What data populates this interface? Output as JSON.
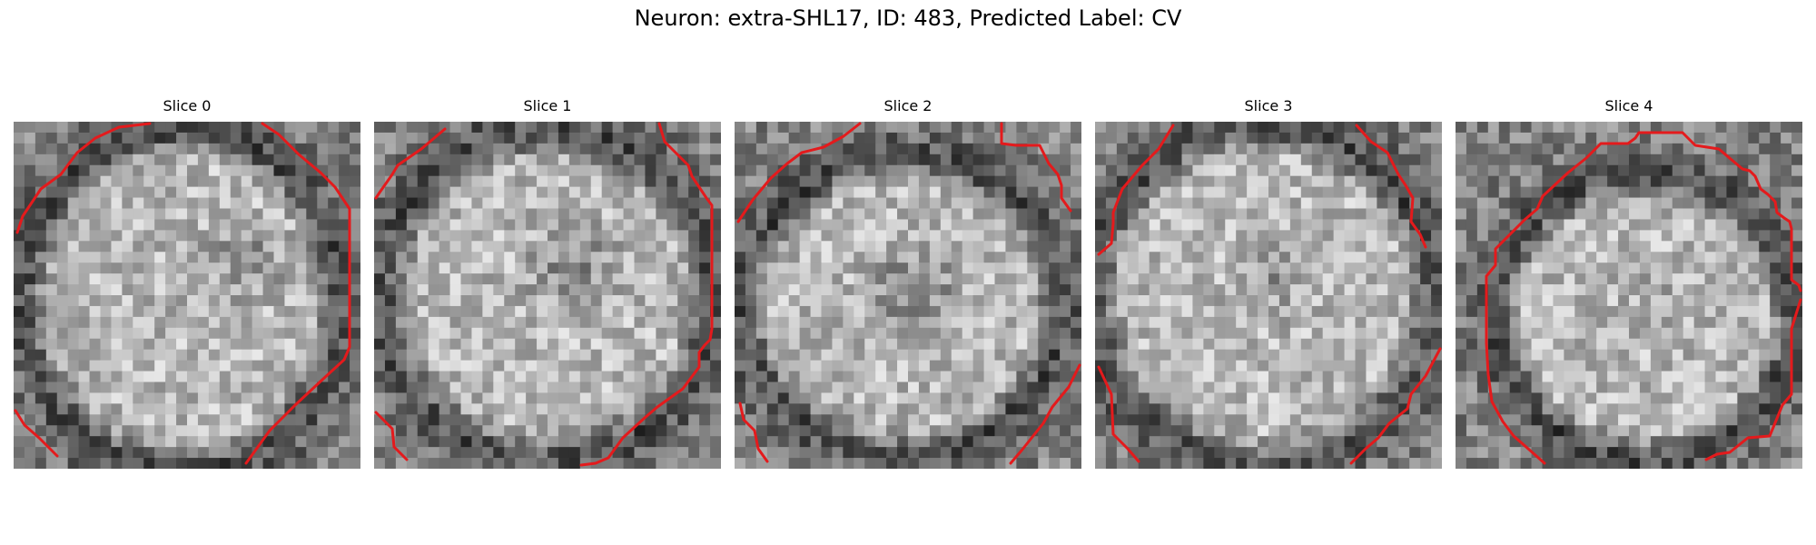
{
  "figure": {
    "title": "Neuron: extra-SHL17, ID: 483, Predicted Label: CV"
  },
  "contour_color": "#e41a1c",
  "panels": [
    {
      "title": "Slice 0"
    },
    {
      "title": "Slice 1"
    },
    {
      "title": "Slice 2"
    },
    {
      "title": "Slice 3"
    },
    {
      "title": "Slice 4"
    }
  ]
}
